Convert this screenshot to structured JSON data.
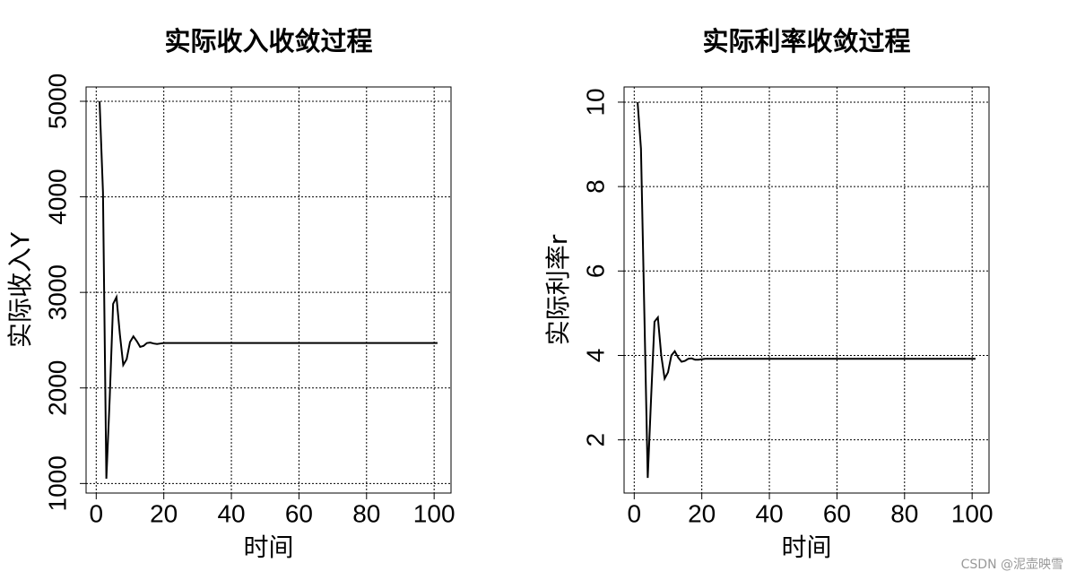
{
  "chart_data": [
    {
      "type": "line",
      "title": "实际收入收敛过程",
      "x_label": "时间",
      "y_label": "实际收入Y",
      "x": [
        1,
        2,
        3,
        4,
        5,
        6,
        7,
        8,
        9,
        10,
        11,
        12,
        13,
        14,
        15,
        16,
        17,
        18,
        19,
        20,
        21,
        22,
        23,
        24,
        25,
        26,
        27,
        28,
        29,
        30,
        31,
        32,
        33,
        34,
        35,
        36,
        37,
        38,
        39,
        40,
        41,
        42,
        43,
        44,
        45,
        46,
        47,
        48,
        49,
        50,
        51,
        52,
        53,
        54,
        55,
        56,
        57,
        58,
        59,
        60,
        61,
        62,
        63,
        64,
        65,
        66,
        67,
        68,
        69,
        70,
        71,
        72,
        73,
        74,
        75,
        76,
        77,
        78,
        79,
        80,
        81,
        82,
        83,
        84,
        85,
        86,
        87,
        88,
        89,
        90,
        91,
        92,
        93,
        94,
        95,
        96,
        97,
        98,
        99,
        100,
        101
      ],
      "series": [
        {
          "name": "Y",
          "color": "#000000",
          "values": [
            5000,
            4050,
            1050,
            1900,
            2880,
            2950,
            2560,
            2240,
            2300,
            2480,
            2540,
            2490,
            2430,
            2440,
            2470,
            2475,
            2465,
            2460,
            2465,
            2470,
            2470,
            2470,
            2470,
            2470,
            2470,
            2470,
            2470,
            2470,
            2470,
            2470,
            2470,
            2470,
            2470,
            2470,
            2470,
            2470,
            2470,
            2470,
            2470,
            2470,
            2470,
            2470,
            2470,
            2470,
            2470,
            2470,
            2470,
            2470,
            2470,
            2470,
            2470,
            2470,
            2470,
            2470,
            2470,
            2470,
            2470,
            2470,
            2470,
            2470,
            2470,
            2470,
            2470,
            2470,
            2470,
            2470,
            2470,
            2470,
            2470,
            2470,
            2470,
            2470,
            2470,
            2470,
            2470,
            2470,
            2470,
            2470,
            2470,
            2470,
            2470,
            2470,
            2470,
            2470,
            2470,
            2470,
            2470,
            2470,
            2470,
            2470,
            2470,
            2470,
            2470,
            2470,
            2470,
            2470,
            2470,
            2470,
            2470,
            2470,
            2470
          ]
        }
      ],
      "xlim": [
        -3,
        105
      ],
      "xticks": [
        0,
        20,
        40,
        60,
        80,
        100
      ],
      "ylim": [
        900,
        5150
      ],
      "yticks": [
        1000,
        2000,
        3000,
        4000,
        5000
      ],
      "grid": true
    },
    {
      "type": "line",
      "title": "实际利率收敛过程",
      "x_label": "时间",
      "y_label": "实际利率r",
      "x": [
        1,
        2,
        3,
        4,
        5,
        6,
        7,
        8,
        9,
        10,
        11,
        12,
        13,
        14,
        15,
        16,
        17,
        18,
        19,
        20,
        21,
        22,
        23,
        24,
        25,
        26,
        27,
        28,
        29,
        30,
        31,
        32,
        33,
        34,
        35,
        36,
        37,
        38,
        39,
        40,
        41,
        42,
        43,
        44,
        45,
        46,
        47,
        48,
        49,
        50,
        51,
        52,
        53,
        54,
        55,
        56,
        57,
        58,
        59,
        60,
        61,
        62,
        63,
        64,
        65,
        66,
        67,
        68,
        69,
        70,
        71,
        72,
        73,
        74,
        75,
        76,
        77,
        78,
        79,
        80,
        81,
        82,
        83,
        84,
        85,
        86,
        87,
        88,
        89,
        90,
        91,
        92,
        93,
        94,
        95,
        96,
        97,
        98,
        99,
        100,
        101
      ],
      "series": [
        {
          "name": "r",
          "color": "#000000",
          "values": [
            10,
            8.9,
            5.0,
            1.1,
            3.0,
            4.8,
            4.9,
            4.0,
            3.45,
            3.6,
            4.0,
            4.1,
            3.95,
            3.85,
            3.87,
            3.92,
            3.93,
            3.9,
            3.9,
            3.91,
            3.92,
            3.92,
            3.92,
            3.92,
            3.92,
            3.92,
            3.92,
            3.92,
            3.92,
            3.92,
            3.92,
            3.92,
            3.92,
            3.92,
            3.92,
            3.92,
            3.92,
            3.92,
            3.92,
            3.92,
            3.92,
            3.92,
            3.92,
            3.92,
            3.92,
            3.92,
            3.92,
            3.92,
            3.92,
            3.92,
            3.92,
            3.92,
            3.92,
            3.92,
            3.92,
            3.92,
            3.92,
            3.92,
            3.92,
            3.92,
            3.92,
            3.92,
            3.92,
            3.92,
            3.92,
            3.92,
            3.92,
            3.92,
            3.92,
            3.92,
            3.92,
            3.92,
            3.92,
            3.92,
            3.92,
            3.92,
            3.92,
            3.92,
            3.92,
            3.92,
            3.92,
            3.92,
            3.92,
            3.92,
            3.92,
            3.92,
            3.92,
            3.92,
            3.92,
            3.92,
            3.92,
            3.92,
            3.92,
            3.92,
            3.92,
            3.92,
            3.92,
            3.92,
            3.92,
            3.92,
            3.92
          ]
        }
      ],
      "xlim": [
        -3,
        105
      ],
      "xticks": [
        0,
        20,
        40,
        60,
        80,
        100
      ],
      "ylim": [
        0.74,
        10.36
      ],
      "yticks": [
        2,
        4,
        6,
        8,
        10
      ],
      "grid": true
    }
  ],
  "watermark": "CSDN @泥壶映雪"
}
